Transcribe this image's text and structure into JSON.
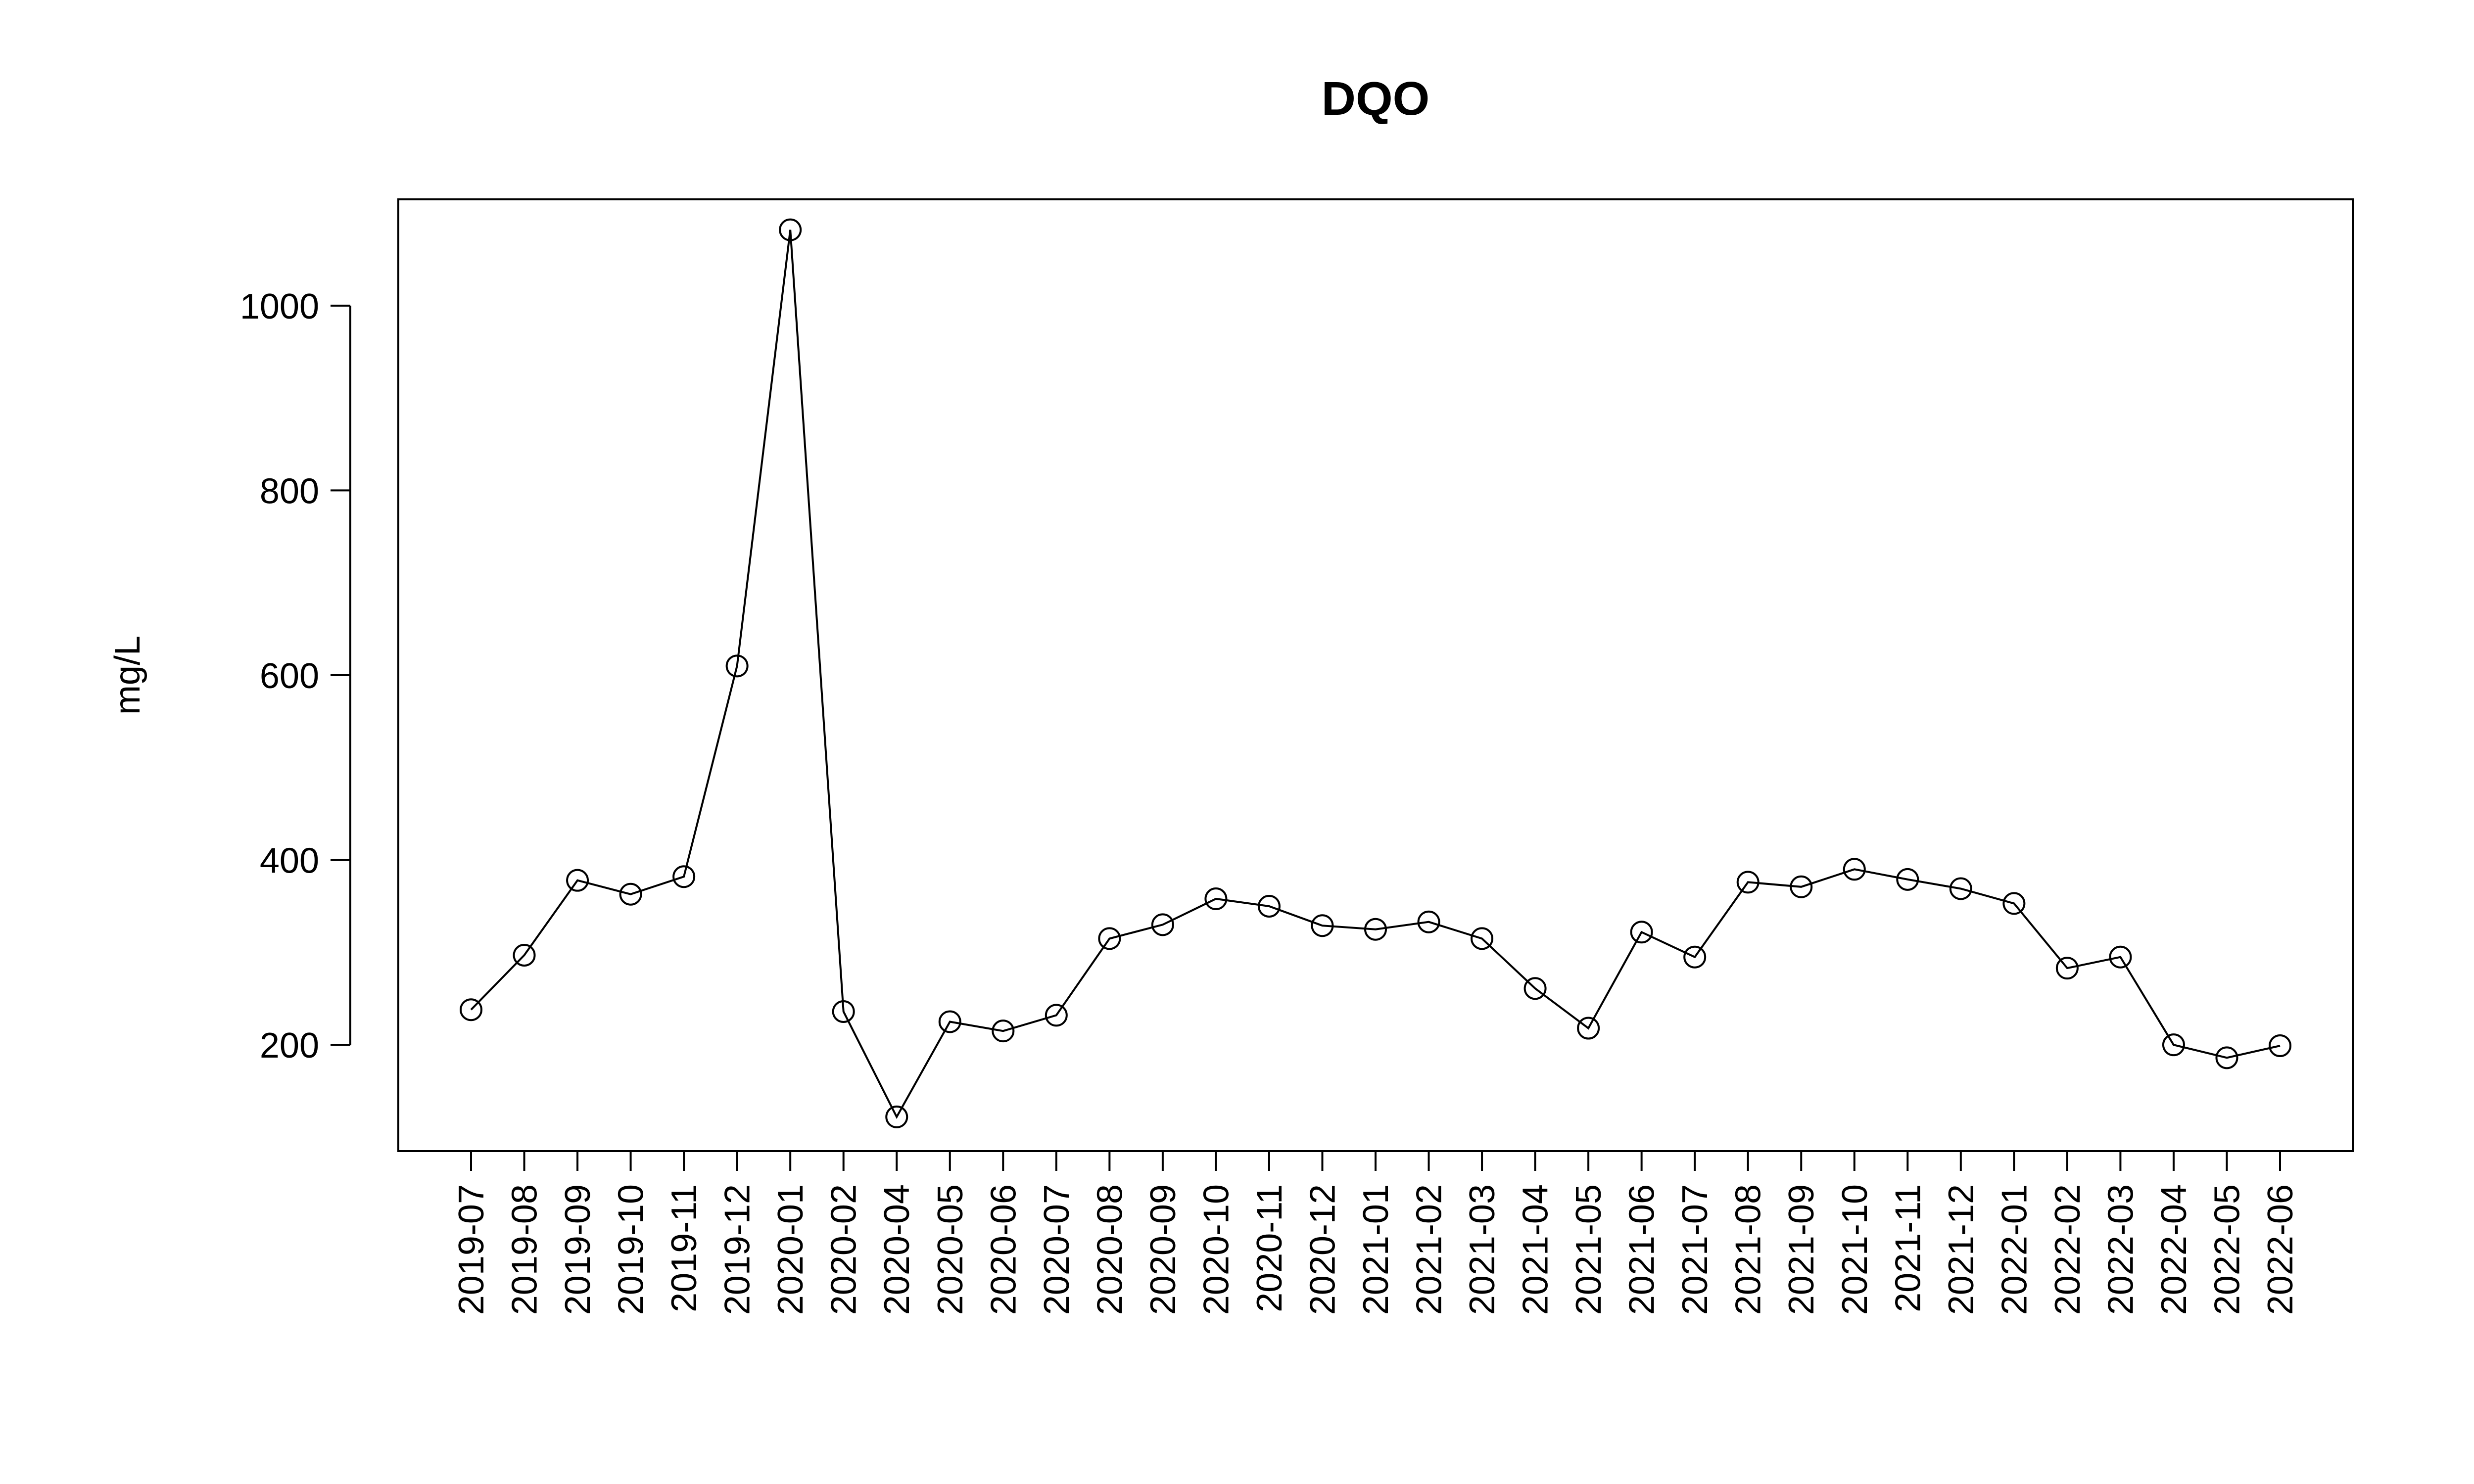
{
  "chart_data": {
    "type": "line",
    "title": "DQO",
    "xlabel": "",
    "ylabel": "mg/L",
    "ylim": [
      85,
      1115
    ],
    "yticks": [
      200,
      400,
      600,
      800,
      1000
    ],
    "grid": false,
    "legend": "none",
    "markers": "open-circle",
    "line_color": "#000000",
    "categories": [
      "2019-07",
      "2019-08",
      "2019-09",
      "2019-10",
      "2019-11",
      "2019-12",
      "2020-01",
      "2020-02",
      "2020-04",
      "2020-05",
      "2020-06",
      "2020-07",
      "2020-08",
      "2020-09",
      "2020-10",
      "2020-11",
      "2020-12",
      "2021-01",
      "2021-02",
      "2021-03",
      "2021-04",
      "2021-05",
      "2021-06",
      "2021-07",
      "2021-08",
      "2021-09",
      "2021-10",
      "2021-11",
      "2021-12",
      "2022-01",
      "2022-02",
      "2022-03",
      "2022-04",
      "2022-05",
      "2022-06"
    ],
    "values": [
      238,
      297,
      378,
      363,
      382,
      610,
      1082,
      236,
      122,
      225,
      215,
      232,
      315,
      330,
      358,
      350,
      329,
      325,
      333,
      315,
      261,
      218,
      322,
      295,
      376,
      371,
      390,
      379,
      369,
      353,
      283,
      295,
      200,
      186,
      199
    ]
  }
}
